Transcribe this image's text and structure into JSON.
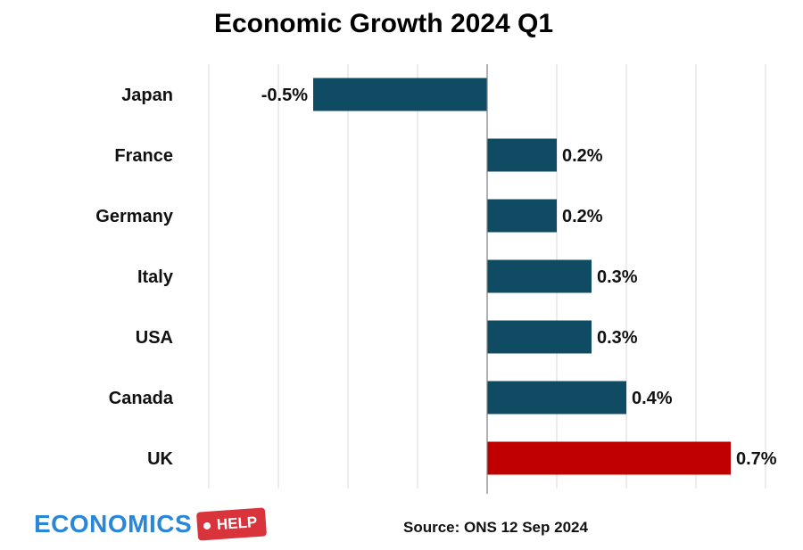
{
  "chart_data": {
    "type": "bar",
    "orientation": "horizontal",
    "title": "Economic Growth 2024 Q1",
    "categories": [
      "Japan",
      "France",
      "Germany",
      "Italy",
      "USA",
      "Canada",
      "UK"
    ],
    "values": [
      -0.5,
      0.2,
      0.2,
      0.3,
      0.3,
      0.4,
      0.7
    ],
    "data_labels": [
      "-0.5%",
      "0.2%",
      "0.2%",
      "0.3%",
      "0.3%",
      "0.4%",
      "0.7%"
    ],
    "bar_colors": [
      "#0f4c63",
      "#0f4c63",
      "#0f4c63",
      "#0f4c63",
      "#0f4c63",
      "#0f4c63",
      "#c00000"
    ],
    "xlim": [
      -0.8,
      0.8
    ],
    "gridlines": [
      -0.8,
      -0.6,
      -0.4,
      -0.2,
      0,
      0.2,
      0.4,
      0.6,
      0.8
    ],
    "grid": true,
    "legend": "none"
  },
  "source": "Source: ONS 12 Sep 2024",
  "logo": {
    "word": "ECONOMICS",
    "tag": "HELP"
  },
  "colors": {
    "bar": "#0f4c63",
    "highlight": "#c00000",
    "grid": "#d9d9d9",
    "logo_blue": "#2a86d6",
    "logo_red": "#d9333b"
  }
}
